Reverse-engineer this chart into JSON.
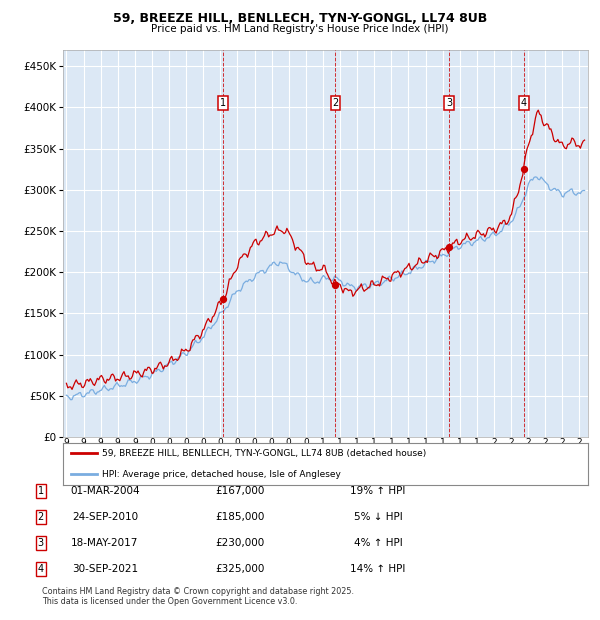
{
  "title": "59, BREEZE HILL, BENLLECH, TYN-Y-GONGL, LL74 8UB",
  "subtitle": "Price paid vs. HM Land Registry's House Price Index (HPI)",
  "legend_line1": "59, BREEZE HILL, BENLLECH, TYN-Y-GONGL, LL74 8UB (detached house)",
  "legend_line2": "HPI: Average price, detached house, Isle of Anglesey",
  "price_color": "#cc0000",
  "hpi_color": "#7aade0",
  "bg_color": "#dce8f5",
  "transactions": [
    {
      "num": 1,
      "date": "01-MAR-2004",
      "price": 167000,
      "pct": "19%",
      "dir": "↑"
    },
    {
      "num": 2,
      "date": "24-SEP-2010",
      "price": 185000,
      "pct": "5%",
      "dir": "↓"
    },
    {
      "num": 3,
      "date": "18-MAY-2017",
      "price": 230000,
      "pct": "4%",
      "dir": "↑"
    },
    {
      "num": 4,
      "date": "30-SEP-2021",
      "price": 325000,
      "pct": "14%",
      "dir": "↑"
    }
  ],
  "vline_dates": [
    2004.17,
    2010.73,
    2017.38,
    2021.75
  ],
  "footer": "Contains HM Land Registry data © Crown copyright and database right 2025.\nThis data is licensed under the Open Government Licence v3.0.",
  "ylim": [
    0,
    470000
  ],
  "yticks": [
    0,
    50000,
    100000,
    150000,
    200000,
    250000,
    300000,
    350000,
    400000,
    450000
  ],
  "xlim": [
    1994.8,
    2025.5
  ],
  "price_anchors": [
    [
      1995.0,
      62000
    ],
    [
      1996.0,
      65000
    ],
    [
      1997.0,
      70000
    ],
    [
      1998.0,
      72000
    ],
    [
      1999.0,
      76000
    ],
    [
      2000.0,
      82000
    ],
    [
      2001.0,
      90000
    ],
    [
      2002.0,
      105000
    ],
    [
      2003.0,
      130000
    ],
    [
      2004.17,
      167000
    ],
    [
      2005.0,
      210000
    ],
    [
      2006.0,
      235000
    ],
    [
      2007.0,
      248000
    ],
    [
      2007.8,
      252000
    ],
    [
      2008.5,
      230000
    ],
    [
      2009.0,
      215000
    ],
    [
      2009.5,
      205000
    ],
    [
      2010.0,
      205000
    ],
    [
      2010.73,
      185000
    ],
    [
      2011.0,
      185000
    ],
    [
      2011.5,
      175000
    ],
    [
      2012.0,
      178000
    ],
    [
      2013.0,
      185000
    ],
    [
      2014.0,
      195000
    ],
    [
      2015.0,
      205000
    ],
    [
      2016.0,
      215000
    ],
    [
      2017.0,
      225000
    ],
    [
      2017.38,
      230000
    ],
    [
      2018.0,
      238000
    ],
    [
      2019.0,
      245000
    ],
    [
      2020.0,
      252000
    ],
    [
      2020.5,
      258000
    ],
    [
      2021.0,
      268000
    ],
    [
      2021.75,
      325000
    ],
    [
      2022.0,
      355000
    ],
    [
      2022.3,
      375000
    ],
    [
      2022.6,
      395000
    ],
    [
      2023.0,
      380000
    ],
    [
      2023.5,
      365000
    ],
    [
      2024.0,
      352000
    ],
    [
      2024.5,
      358000
    ],
    [
      2025.0,
      355000
    ]
  ],
  "hpi_anchors": [
    [
      1995.0,
      48000
    ],
    [
      1996.0,
      52000
    ],
    [
      1997.0,
      57000
    ],
    [
      1998.0,
      62000
    ],
    [
      1999.0,
      68000
    ],
    [
      2000.0,
      76000
    ],
    [
      2001.0,
      88000
    ],
    [
      2002.0,
      102000
    ],
    [
      2003.0,
      122000
    ],
    [
      2004.0,
      148000
    ],
    [
      2005.0,
      178000
    ],
    [
      2006.0,
      195000
    ],
    [
      2007.0,
      208000
    ],
    [
      2007.5,
      213000
    ],
    [
      2008.0,
      205000
    ],
    [
      2008.5,
      196000
    ],
    [
      2009.0,
      190000
    ],
    [
      2009.5,
      188000
    ],
    [
      2010.0,
      192000
    ],
    [
      2010.5,
      193000
    ],
    [
      2011.0,
      190000
    ],
    [
      2011.5,
      183000
    ],
    [
      2012.0,
      182000
    ],
    [
      2013.0,
      185000
    ],
    [
      2014.0,
      192000
    ],
    [
      2015.0,
      200000
    ],
    [
      2016.0,
      210000
    ],
    [
      2017.0,
      220000
    ],
    [
      2018.0,
      232000
    ],
    [
      2019.0,
      238000
    ],
    [
      2020.0,
      245000
    ],
    [
      2020.5,
      252000
    ],
    [
      2021.0,
      262000
    ],
    [
      2021.5,
      278000
    ],
    [
      2022.0,
      305000
    ],
    [
      2022.5,
      318000
    ],
    [
      2023.0,
      308000
    ],
    [
      2023.5,
      300000
    ],
    [
      2024.0,
      295000
    ],
    [
      2024.5,
      298000
    ],
    [
      2025.0,
      296000
    ]
  ]
}
